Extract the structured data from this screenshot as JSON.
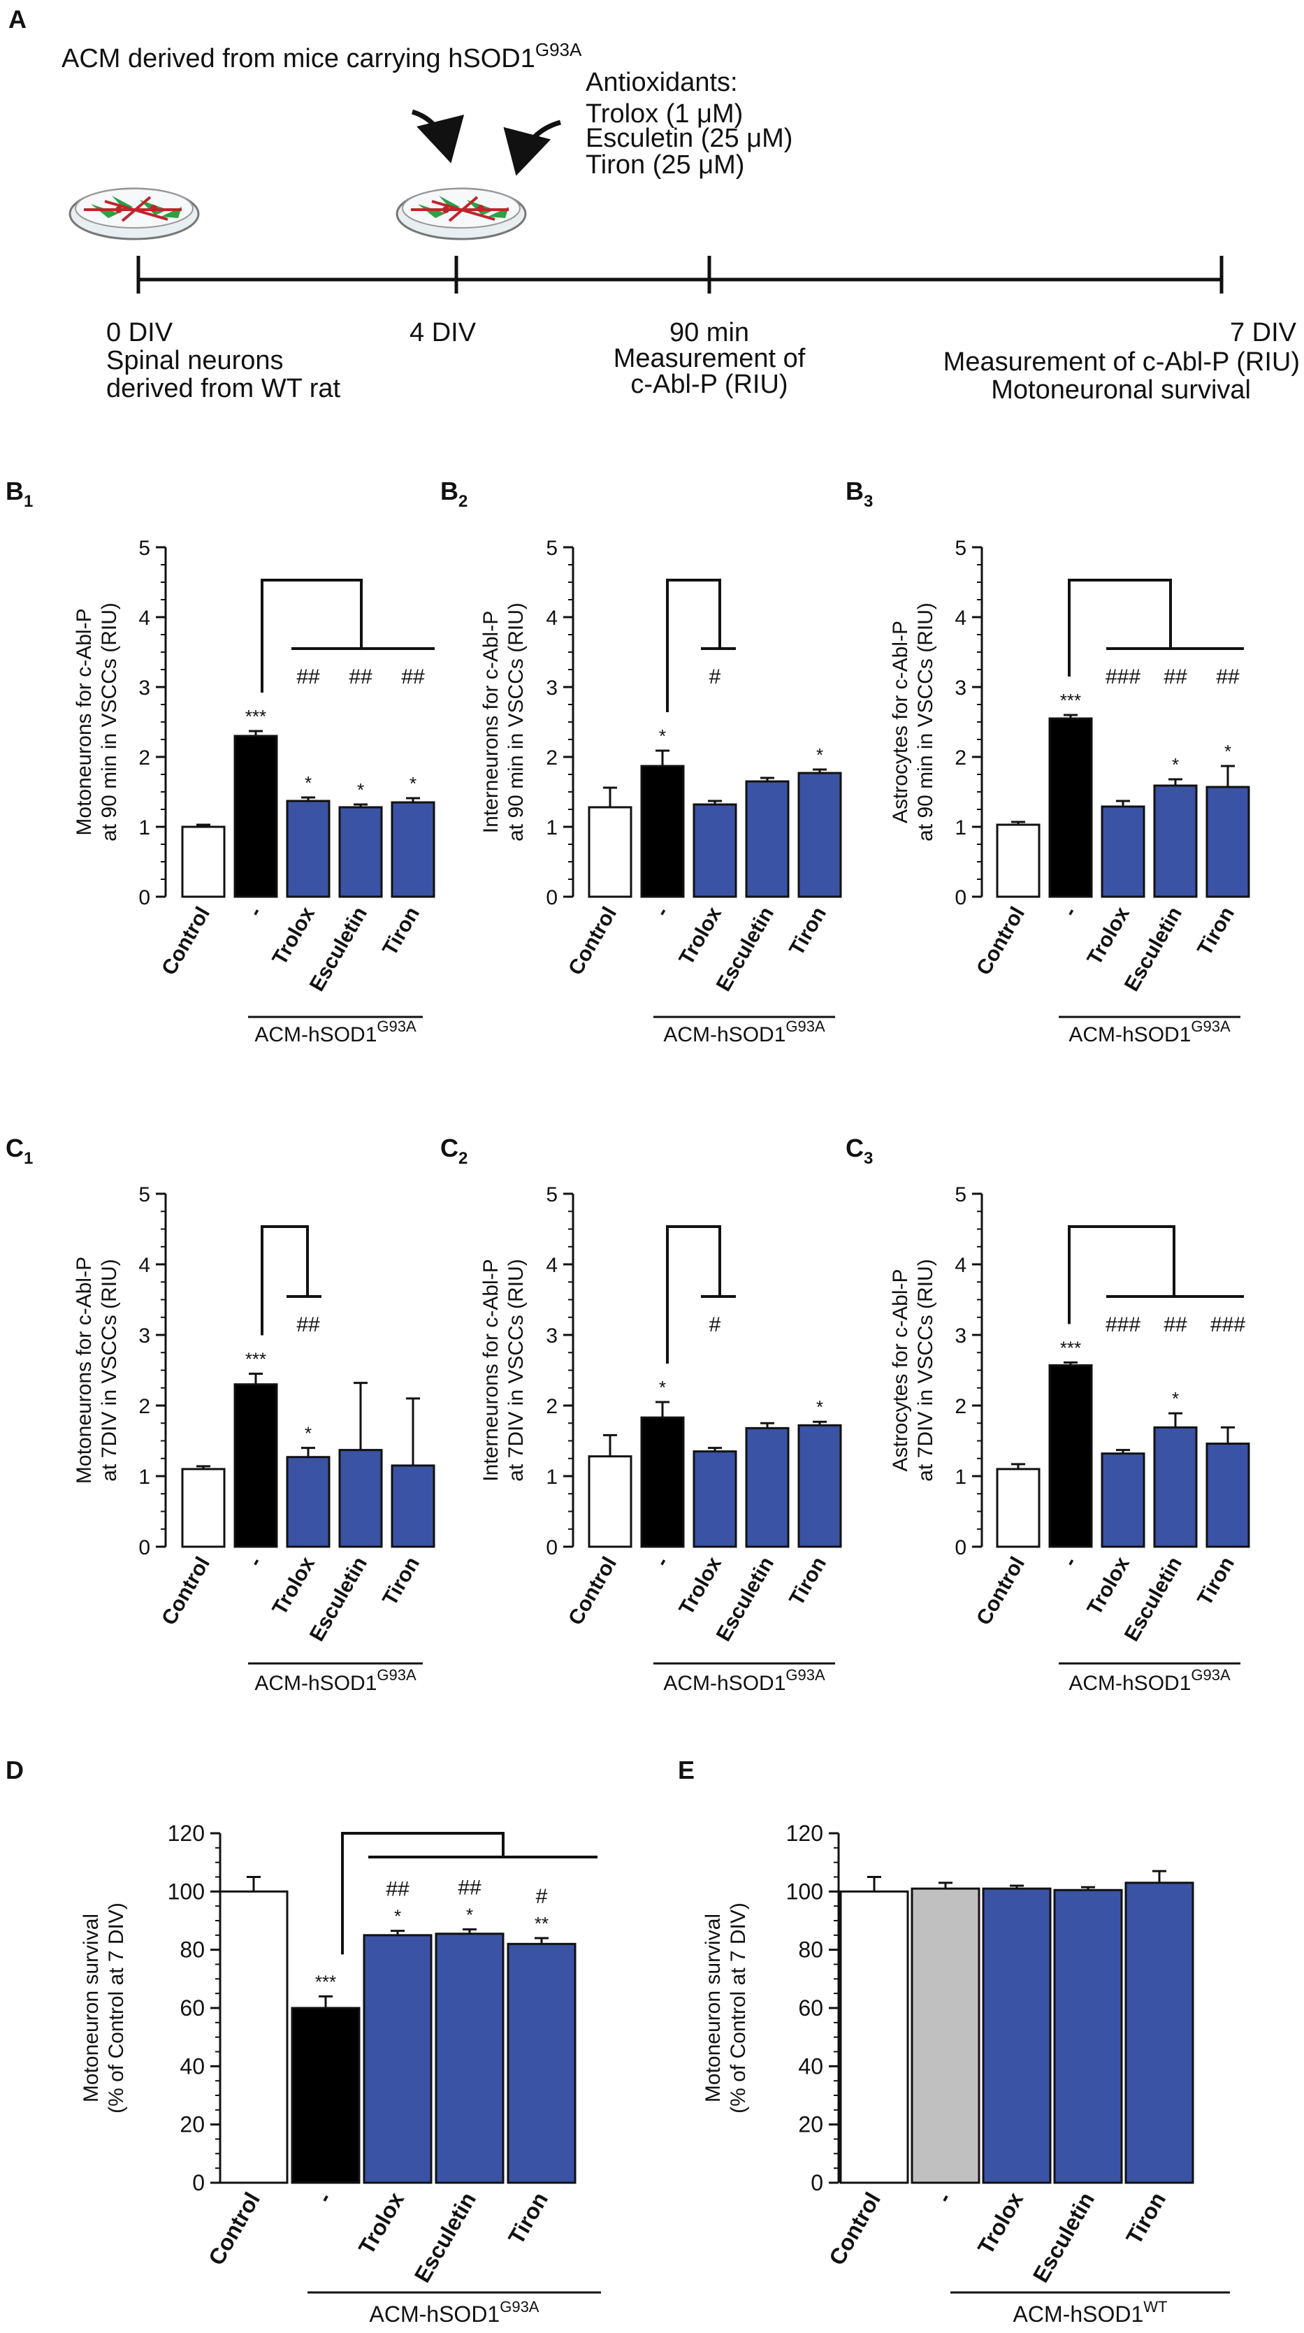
{
  "panel_labels": {
    "a": "A",
    "b1": "B",
    "b1_sub": "1",
    "b2": "B",
    "b2_sub": "2",
    "b3": "B",
    "b3_sub": "3",
    "c1": "C",
    "c1_sub": "1",
    "c2": "C",
    "c2_sub": "2",
    "c3": "C",
    "c3_sub": "3",
    "d": "D",
    "e": "E"
  },
  "timeline": {
    "acm_main": "ACM derived from mice carrying hSOD1",
    "acm_sup": "G93A",
    "antioxidants_title": "Antioxidants:",
    "antioxidants": [
      "Trolox (1 μM)",
      "Esculetin (25 μM)",
      "Tiron (25 μM)"
    ],
    "t0_label": "0 DIV",
    "t0_desc": [
      "Spinal neurons",
      "derived from WT rat"
    ],
    "t1_label": "4 DIV",
    "t2_label": "90 min",
    "t2_desc": [
      "Measurement of",
      "c-Abl-P (RIU)"
    ],
    "t3_label": "7 DIV",
    "t3_desc": [
      "Measurement of c-Abl-P (RIU)",
      "Motoneuronal survival"
    ]
  },
  "group_labels": {
    "g93a_main": "ACM-hSOD1",
    "g93a_sup": "G93A",
    "wt_main": "ACM-hSOD1",
    "wt_sup": "WT"
  },
  "colors": {
    "control": "#ffffff",
    "acm": "#000000",
    "treated": "#3a53a4",
    "wt_acm": "#c0c0c0"
  },
  "chart_data": [
    {
      "id": "B1",
      "type": "bar",
      "categories": [
        "Control",
        "-",
        "Trolox",
        "Esculetin",
        "Tiron"
      ],
      "values": [
        1.0,
        2.3,
        1.37,
        1.28,
        1.35
      ],
      "errors": [
        0.03,
        0.07,
        0.05,
        0.04,
        0.06
      ],
      "ylabel": [
        "Motoneurons  for c-Abl-P",
        "at 90 min in  VSCCs (RIU)"
      ],
      "ylim": [
        0,
        5
      ],
      "yticks": [
        "0",
        "1",
        "2",
        "3",
        "4",
        "5"
      ],
      "stars": [
        "",
        "***",
        "*",
        "*",
        "*"
      ],
      "hashes": [
        "",
        "",
        "##",
        "##",
        "##"
      ]
    },
    {
      "id": "B2",
      "type": "bar",
      "categories": [
        "Control",
        "-",
        "Trolox",
        "Esculetin",
        "Tiron"
      ],
      "values": [
        1.28,
        1.87,
        1.32,
        1.65,
        1.77
      ],
      "errors": [
        0.28,
        0.22,
        0.05,
        0.05,
        0.05
      ],
      "ylabel": [
        "Interneurons  for c-Abl-P",
        "at 90 min in  VSCCs (RIU)"
      ],
      "ylim": [
        0,
        5
      ],
      "yticks": [
        "0",
        "1",
        "2",
        "3",
        "4",
        "5"
      ],
      "stars": [
        "",
        "*",
        "",
        "",
        "*"
      ],
      "hashes": [
        "",
        "",
        "#",
        "",
        ""
      ]
    },
    {
      "id": "B3",
      "type": "bar",
      "categories": [
        "Control",
        "-",
        "Trolox",
        "Esculetin",
        "Tiron"
      ],
      "values": [
        1.03,
        2.55,
        1.29,
        1.59,
        1.57
      ],
      "errors": [
        0.04,
        0.05,
        0.08,
        0.09,
        0.3
      ],
      "ylabel": [
        "Astrocytes  for c-Abl-P",
        "at 90 min in  VSCCs (RIU)"
      ],
      "ylim": [
        0,
        5
      ],
      "yticks": [
        "0",
        "1",
        "2",
        "3",
        "4",
        "5"
      ],
      "stars": [
        "",
        "***",
        "",
        "*",
        "*"
      ],
      "hashes": [
        "",
        "",
        "###",
        "##",
        "##"
      ]
    },
    {
      "id": "C1",
      "type": "bar",
      "categories": [
        "Control",
        "-",
        "Trolox",
        "Esculetin",
        "Tiron"
      ],
      "values": [
        1.1,
        2.3,
        1.27,
        1.37,
        1.15
      ],
      "errors": [
        0.04,
        0.15,
        0.13,
        0.95,
        0.95
      ],
      "ylabel": [
        "Motoneurons  for c-Abl-P",
        "at 7DIV in  VSCCs (RIU)"
      ],
      "ylim": [
        0,
        5
      ],
      "yticks": [
        "0",
        "1",
        "2",
        "3",
        "4",
        "5"
      ],
      "stars": [
        "",
        "***",
        "*",
        "",
        ""
      ],
      "hashes": [
        "",
        "",
        "##",
        "",
        ""
      ]
    },
    {
      "id": "C2",
      "type": "bar",
      "categories": [
        "Control",
        "-",
        "Trolox",
        "Esculetin",
        "Tiron"
      ],
      "values": [
        1.28,
        1.83,
        1.35,
        1.68,
        1.72
      ],
      "errors": [
        0.3,
        0.22,
        0.05,
        0.07,
        0.05
      ],
      "ylabel": [
        "Interneurons  for c-Abl-P",
        "at 7DIV in  VSCCs (RIU)"
      ],
      "ylim": [
        0,
        5
      ],
      "yticks": [
        "0",
        "1",
        "2",
        "3",
        "4",
        "5"
      ],
      "stars": [
        "",
        "*",
        "",
        "",
        "*"
      ],
      "hashes": [
        "",
        "",
        "#",
        "",
        ""
      ]
    },
    {
      "id": "C3",
      "type": "bar",
      "categories": [
        "Control",
        "-",
        "Trolox",
        "Esculetin",
        "Tiron"
      ],
      "values": [
        1.1,
        2.57,
        1.32,
        1.69,
        1.46
      ],
      "errors": [
        0.07,
        0.04,
        0.05,
        0.2,
        0.23
      ],
      "ylabel": [
        "Astrocytes  for c-Abl-P",
        "at 7DIV in  VSCCs (RIU)"
      ],
      "ylim": [
        0,
        5
      ],
      "yticks": [
        "0",
        "1",
        "2",
        "3",
        "4",
        "5"
      ],
      "stars": [
        "",
        "***",
        "",
        "*",
        ""
      ],
      "hashes": [
        "",
        "",
        "###",
        "##",
        "###"
      ]
    },
    {
      "id": "D",
      "type": "bar",
      "categories": [
        "Control",
        "-",
        "Trolox",
        "Esculetin",
        "Tiron"
      ],
      "values": [
        100,
        60,
        85,
        85.5,
        82
      ],
      "errors": [
        5,
        4,
        1.5,
        1.5,
        2
      ],
      "ylabel": [
        "Motoneuron survival",
        "(% of Control at 7 DIV)"
      ],
      "ylim": [
        0,
        120
      ],
      "yticks": [
        "0",
        "20",
        "40",
        "60",
        "80",
        "100",
        "120"
      ],
      "stars": [
        "",
        "***",
        "*",
        "*",
        "**"
      ],
      "hashes": [
        "",
        "",
        "##",
        "##",
        "#"
      ]
    },
    {
      "id": "E",
      "type": "bar",
      "categories": [
        "Control",
        "-",
        "Trolox",
        "Esculetin",
        "Tiron"
      ],
      "values": [
        100,
        101,
        101,
        100.5,
        103
      ],
      "errors": [
        5,
        2,
        1,
        1,
        4
      ],
      "ylabel": [
        "Motoneuron survival",
        "(% of Control at 7 DIV)"
      ],
      "ylim": [
        0,
        120
      ],
      "yticks": [
        "0",
        "20",
        "40",
        "60",
        "80",
        "100",
        "120"
      ],
      "stars": [
        "",
        "",
        "",
        "",
        ""
      ],
      "hashes": [
        "",
        "",
        "",
        "",
        ""
      ]
    }
  ]
}
